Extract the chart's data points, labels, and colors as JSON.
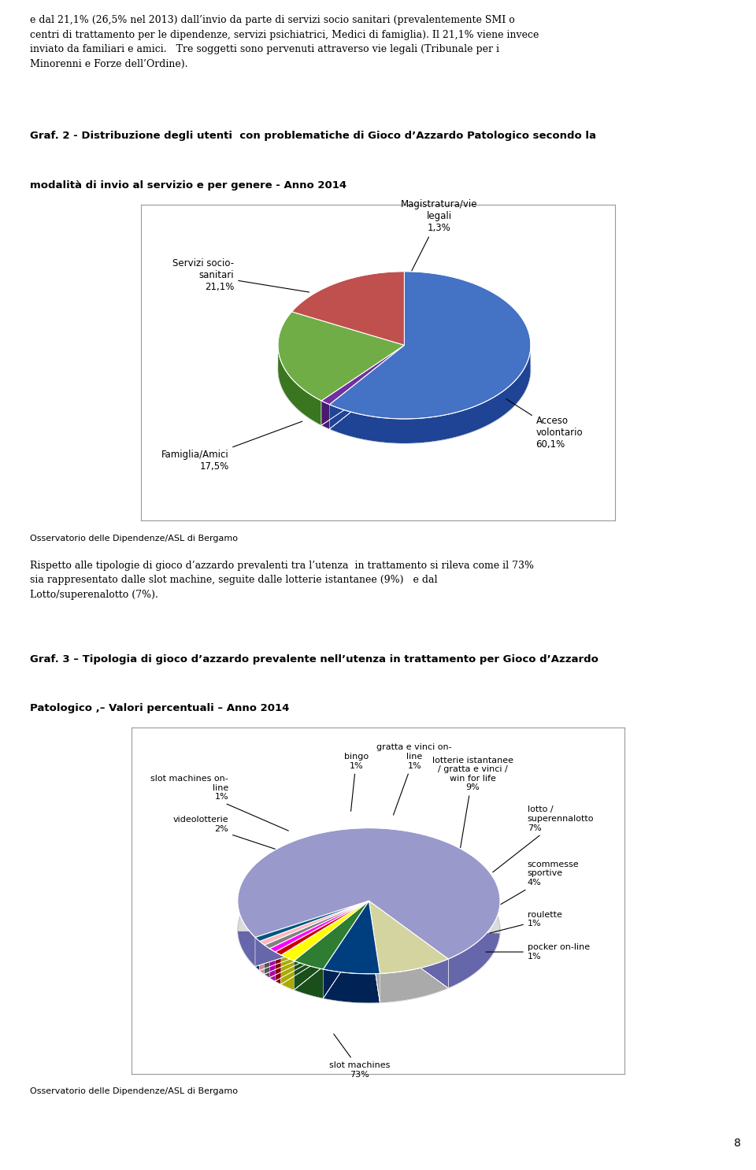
{
  "page_title_top": "e dal 21,1% (26,5% nel 2013) dall’invio da parte di servizi socio sanitari (prevalentemente SMI o\ncentri di trattamento per le dipendenze, servizi psichiatrici, Medici di famiglia). Il 21,1% viene invece\ninviato da familiari e amici.   Tre soggetti sono pervenuti attraverso vie legali (Tribunale per i\nMinorenni e Forze dell’Ordine).",
  "chart1_title_line1": "Graf. 2 - Distribuzione degli utenti  con problematiche di Gioco d’Azzardo Patologico secondo la",
  "chart1_title_line2": "modalità di invio al servizio e per genere - Anno 2014",
  "chart1_values": [
    60.1,
    1.3,
    21.1,
    17.5
  ],
  "chart1_colors": [
    "#4472C4",
    "#7030A0",
    "#70AD47",
    "#C0504D"
  ],
  "chart1_dark_colors": [
    "#1F4495",
    "#4A1A70",
    "#3A7520",
    "#8B2020"
  ],
  "chart1_footer": "Osservatorio delle Dipendenze/ASL di Bergamo",
  "body_text_line1": "Rispetto alle tipologie di gioco d’azzardo prevalenti tra l’utenza  in trattamento si rileva come il 73%",
  "body_text_line2": "sia rappresentato dalle slot machine, seguite dalle lotterie istantanee (9%)   e dal",
  "body_text_line3": "Lotto/superenalotto (7%).",
  "chart2_title_line1": "Graf. 3 – Tipologia di gioco d’azzardo prevalente nell’utenza in trattamento per Gioco d’Azzardo",
  "chart2_title_line2": "Patologico ,– Valori percentuali – Anno 2014",
  "chart2_values": [
    73,
    9,
    7,
    4,
    2,
    1,
    1,
    1,
    1,
    1
  ],
  "chart2_colors": [
    "#9999CC",
    "#D4D4A0",
    "#003F7F",
    "#2E7D32",
    "#FFFF00",
    "#CC0000",
    "#FF00FF",
    "#808080",
    "#FFB6C1",
    "#005580"
  ],
  "chart2_dark_colors": [
    "#6666AA",
    "#AAAAAA",
    "#002255",
    "#1A4F1A",
    "#AAAA00",
    "#880000",
    "#AA00AA",
    "#555555",
    "#CC8899",
    "#003355"
  ],
  "chart2_footer": "Osservatorio delle Dipendenze/ASL di Bergamo",
  "page_number": "8",
  "background_color": "#FFFFFF",
  "text_color": "#000000"
}
